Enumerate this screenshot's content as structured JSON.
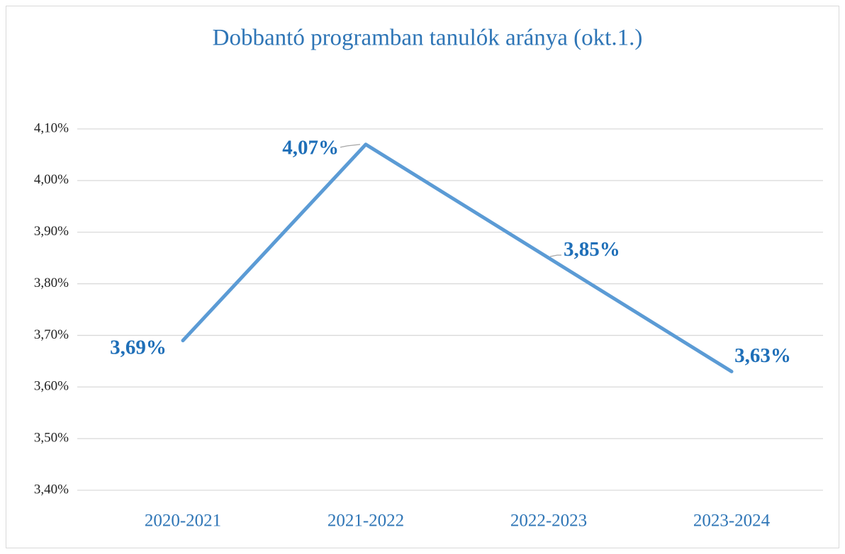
{
  "chart_data": {
    "type": "line",
    "title": "Dobbantó programban tanulók aránya (okt.1.)",
    "categories": [
      "2020-2021",
      "2021-2022",
      "2022-2023",
      "2023-2024"
    ],
    "values": [
      3.69,
      4.07,
      3.85,
      3.63
    ],
    "value_labels": [
      "3,69%",
      "4,07%",
      "3,85%",
      "3,63%"
    ],
    "color": "#5b9bd5",
    "ylim": [
      3.4,
      4.1
    ],
    "yticks": [
      {
        "value": 3.4,
        "label": "3,40%"
      },
      {
        "value": 3.5,
        "label": "3,50%"
      },
      {
        "value": 3.6,
        "label": "3,60%"
      },
      {
        "value": 3.7,
        "label": "3,70%"
      },
      {
        "value": 3.8,
        "label": "3,80%"
      },
      {
        "value": 3.9,
        "label": "3,90%"
      },
      {
        "value": 4.0,
        "label": "4,00%"
      },
      {
        "value": 4.1,
        "label": "4,10%"
      }
    ],
    "grid": true
  }
}
